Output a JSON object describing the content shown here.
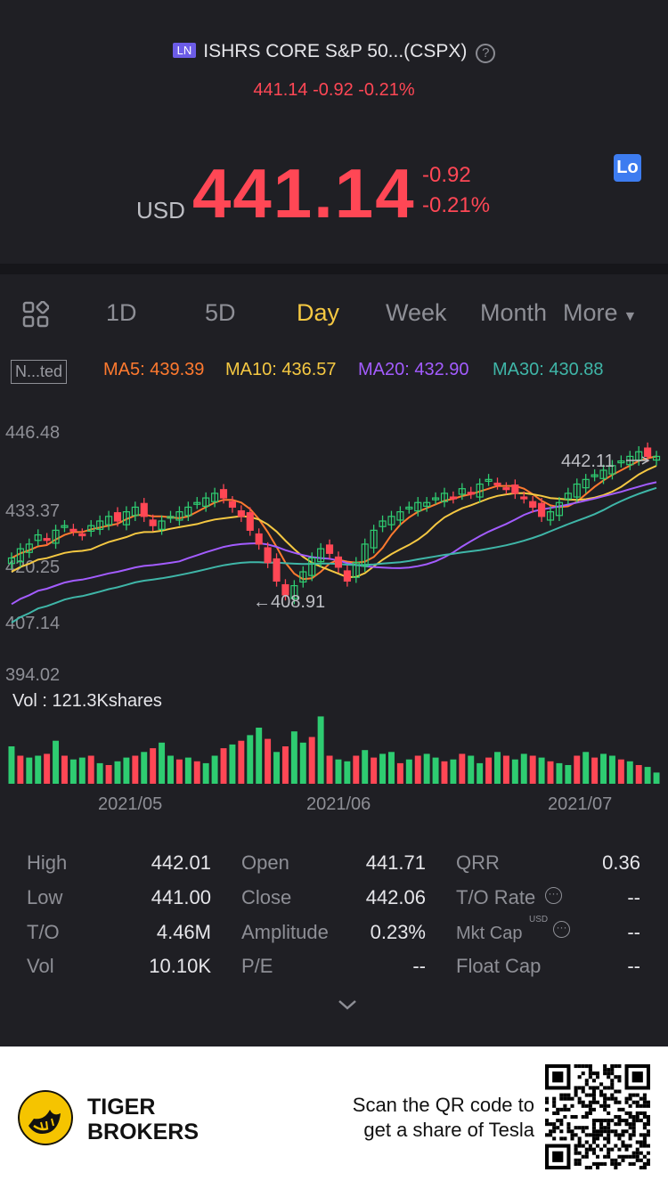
{
  "header": {
    "exchange_badge": "LN",
    "title": "ISHRS CORE S&P 50...(CSPX)",
    "help_icon": "?",
    "sub_quote": "441.14 -0.92 -0.21%",
    "currency": "USD",
    "price": "441.14",
    "change": "-0.92",
    "change_pct": "-0.21%",
    "lo_badge": "Lo"
  },
  "tabs": {
    "items": [
      "1D",
      "5D",
      "Day",
      "Week",
      "Month",
      "More"
    ],
    "active": "Day"
  },
  "ma": {
    "adjust_label": "N...ted",
    "ma5": "MA5: 439.39",
    "ma10": "MA10: 436.57",
    "ma20": "MA20: 432.90",
    "ma30": "MA30: 430.88",
    "colors": {
      "ma5": "#ff7a2f",
      "ma10": "#f5c842",
      "ma20": "#a35cff",
      "ma30": "#3fb6a8"
    }
  },
  "chart": {
    "y_labels": [
      "446.48",
      "433.37",
      "420.25",
      "407.14",
      "394.02"
    ],
    "high_marker": "442.11",
    "low_marker": "←408.91",
    "up_color": "#2ecc71",
    "down_color": "#ff4755"
  },
  "volume": {
    "label": "Vol  : 121.3Kshares",
    "date_labels": [
      "2021/05",
      "2021/06",
      "2021/07"
    ]
  },
  "stats": {
    "high_label": "High",
    "high_value": "442.01",
    "low_label": "Low",
    "low_value": "441.00",
    "to_label": "T/O",
    "to_value": "4.46M",
    "vol_label": "Vol",
    "vol_value": "10.10K",
    "open_label": "Open",
    "open_value": "441.71",
    "close_label": "Close",
    "close_value": "442.06",
    "amp_label": "Amplitude",
    "amp_value": "0.23%",
    "pe_label": "P/E",
    "pe_value": "--",
    "qrr_label": "QRR",
    "qrr_value": "0.36",
    "torate_label": "T/O Rate",
    "torate_value": "--",
    "mktcap_label": "Mkt Cap",
    "mktcap_unit": "USD",
    "mktcap_value": "--",
    "floatcap_label": "Float Cap",
    "floatcap_value": "--"
  },
  "footer": {
    "brand_line1": "TIGER",
    "brand_line2": "BROKERS",
    "promo_line1": "Scan the QR code to",
    "promo_line2": "get a share of Tesla"
  }
}
